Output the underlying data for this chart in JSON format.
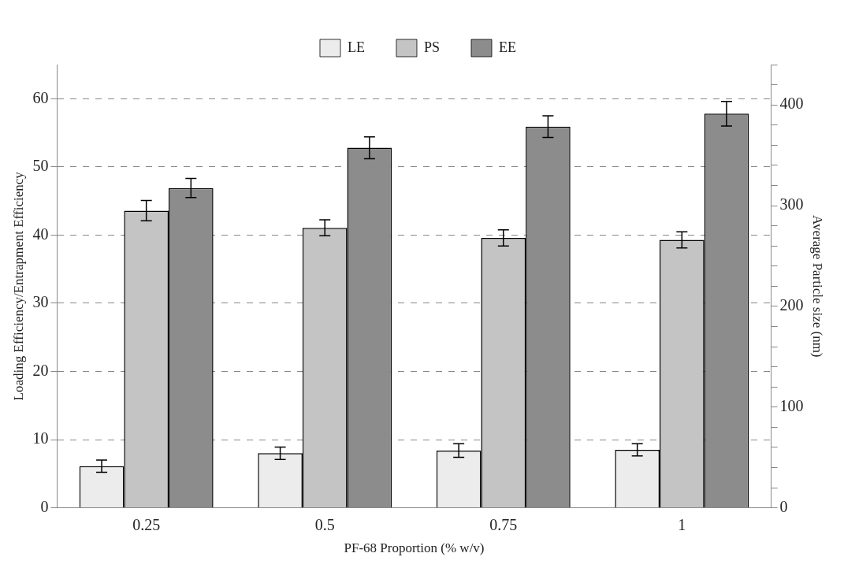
{
  "chart_data": {
    "type": "bar",
    "xlabel": "PF-68 Proportion (% w/v)",
    "ylabel": "Loading Efficiency/Entrapment Efficiency",
    "y2label": "Average Particle size (nm)",
    "categories": [
      "0.25",
      "0.5",
      "0.75",
      "1"
    ],
    "series": [
      {
        "name": "LE",
        "color": "#ececec",
        "values": [
          6.1,
          8.0,
          8.4,
          8.5
        ],
        "errors": [
          0.9,
          0.9,
          1.0,
          0.9
        ]
      },
      {
        "name": "PS",
        "color": "#c4c4c4",
        "axis": "y2",
        "values": [
          295,
          278,
          268,
          266
        ],
        "errors": [
          10,
          8,
          8,
          8
        ]
      },
      {
        "name": "EE",
        "color": "#8c8c8c",
        "values": [
          46.9,
          52.8,
          55.9,
          57.8
        ],
        "errors": [
          1.4,
          1.6,
          1.6,
          1.8
        ]
      }
    ],
    "ylim": [
      0,
      65
    ],
    "yticks": [
      0,
      10,
      20,
      30,
      40,
      50,
      60
    ],
    "y2lim": [
      0,
      440
    ],
    "y2ticks": [
      0,
      {
        "value": 20,
        "label": null
      },
      {
        "value": 40,
        "label": null
      },
      {
        "value": 60,
        "label": null
      },
      {
        "value": 80,
        "label": null
      },
      100,
      {
        "value": 120,
        "label": null
      },
      {
        "value": 140,
        "label": null
      },
      {
        "value": 160,
        "label": null
      },
      {
        "value": 180,
        "label": null
      },
      200,
      {
        "value": 220,
        "label": null
      },
      {
        "value": 240,
        "label": null
      },
      {
        "value": 260,
        "label": null
      },
      {
        "value": 280,
        "label": null
      },
      300,
      {
        "value": 320,
        "label": null
      },
      {
        "value": 340,
        "label": null
      },
      {
        "value": 360,
        "label": null
      },
      {
        "value": 380,
        "label": null
      },
      400,
      {
        "value": 420,
        "label": null
      },
      {
        "value": 440,
        "label": null
      }
    ],
    "grid": "y",
    "legend": "top"
  }
}
